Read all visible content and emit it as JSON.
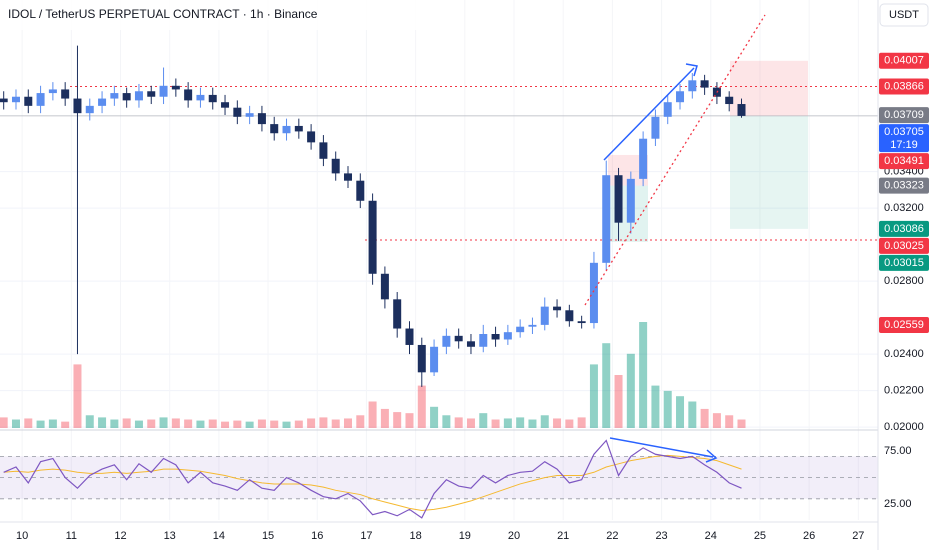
{
  "chart_data": {
    "type": "candlestick",
    "title": "IDOL / TetherUS PERPETUAL CONTRACT · 1h · Binance",
    "currency": "USDT",
    "countdown": "17:19",
    "xlim": [
      9.55,
      27.4
    ],
    "xticks": [
      10,
      11,
      12,
      13,
      14,
      15,
      16,
      17,
      18,
      19,
      20,
      21,
      22,
      23,
      24,
      25,
      26,
      27
    ],
    "ylim": [
      0.01995,
      0.0434
    ],
    "yticks": [
      {
        "value": 0.02,
        "label": "0.02000"
      },
      {
        "value": 0.022,
        "label": "0.02200"
      },
      {
        "value": 0.024,
        "label": "0.02400"
      },
      {
        "value": 0.028,
        "label": "0.02800"
      },
      {
        "value": 0.032,
        "label": "0.03200"
      },
      {
        "value": 0.034,
        "label": "0.03400"
      }
    ],
    "grid": true,
    "up_color": "#5b8def",
    "down_color": "#1c2f5e",
    "x": [
      9.625,
      9.875,
      10.125,
      10.375,
      10.625,
      10.875,
      11.125,
      11.375,
      11.625,
      11.875,
      12.125,
      12.375,
      12.625,
      12.875,
      13.125,
      13.375,
      13.625,
      13.875,
      14.125,
      14.375,
      14.625,
      14.875,
      15.125,
      15.375,
      15.625,
      15.875,
      16.125,
      16.375,
      16.625,
      16.875,
      17.125,
      17.375,
      17.625,
      17.875,
      18.125,
      18.375,
      18.625,
      18.875,
      19.125,
      19.375,
      19.625,
      19.875,
      20.125,
      20.375,
      20.625,
      20.875,
      21.125,
      21.375,
      21.625,
      21.875,
      22.125,
      22.375,
      22.625,
      22.875,
      23.125,
      23.375,
      23.625,
      23.875,
      24.125,
      24.375,
      24.625
    ],
    "open": [
      0.038,
      0.0378,
      0.0381,
      0.0376,
      0.0383,
      0.0385,
      0.038,
      0.0372,
      0.0376,
      0.038,
      0.0383,
      0.0379,
      0.0384,
      0.0381,
      0.0387,
      0.0385,
      0.0379,
      0.0382,
      0.0378,
      0.0375,
      0.037,
      0.0372,
      0.0366,
      0.0361,
      0.0365,
      0.0362,
      0.0356,
      0.0347,
      0.0339,
      0.0335,
      0.0324,
      0.0284,
      0.027,
      0.0254,
      0.0245,
      0.023,
      0.0244,
      0.025,
      0.0247,
      0.0244,
      0.0251,
      0.0248,
      0.0252,
      0.0255,
      0.0256,
      0.0266,
      0.0264,
      0.0258,
      0.0257,
      0.029,
      0.0338,
      0.0312,
      0.0336,
      0.0358,
      0.037,
      0.0378,
      0.0384,
      0.039,
      0.0386,
      0.0381,
      0.0377
    ],
    "high": [
      0.0384,
      0.0385,
      0.0385,
      0.0387,
      0.0389,
      0.0389,
      0.0409,
      0.038,
      0.0384,
      0.0387,
      0.0386,
      0.0388,
      0.0387,
      0.0397,
      0.0391,
      0.0389,
      0.0386,
      0.0386,
      0.0382,
      0.0379,
      0.0376,
      0.0376,
      0.037,
      0.0369,
      0.0369,
      0.0366,
      0.036,
      0.0351,
      0.0343,
      0.0339,
      0.0328,
      0.0288,
      0.0274,
      0.0258,
      0.0249,
      0.0248,
      0.0254,
      0.0254,
      0.0251,
      0.0256,
      0.0255,
      0.0256,
      0.0259,
      0.026,
      0.0271,
      0.027,
      0.0267,
      0.0261,
      0.0296,
      0.0346,
      0.0342,
      0.034,
      0.0362,
      0.0374,
      0.0382,
      0.0388,
      0.0394,
      0.0393,
      0.0389,
      0.0384,
      0.038
    ],
    "low": [
      0.0374,
      0.0374,
      0.0372,
      0.0372,
      0.0379,
      0.0376,
      0.024,
      0.0368,
      0.0372,
      0.0376,
      0.0375,
      0.0375,
      0.0377,
      0.0377,
      0.0381,
      0.0375,
      0.0375,
      0.0374,
      0.0371,
      0.0366,
      0.0366,
      0.0362,
      0.0357,
      0.0357,
      0.0358,
      0.0352,
      0.0343,
      0.0335,
      0.0331,
      0.032,
      0.0278,
      0.0265,
      0.0249,
      0.024,
      0.0222,
      0.0228,
      0.024,
      0.0243,
      0.024,
      0.0241,
      0.0244,
      0.0245,
      0.0249,
      0.0251,
      0.0253,
      0.026,
      0.0255,
      0.0254,
      0.0254,
      0.0286,
      0.0302,
      0.0306,
      0.0332,
      0.0354,
      0.0366,
      0.0374,
      0.038,
      0.0382,
      0.0377,
      0.0373,
      0.03695
    ],
    "close": [
      0.0378,
      0.0381,
      0.0376,
      0.0383,
      0.0385,
      0.038,
      0.0372,
      0.0376,
      0.038,
      0.0383,
      0.0379,
      0.0384,
      0.0381,
      0.0387,
      0.0385,
      0.0379,
      0.0382,
      0.0378,
      0.0375,
      0.037,
      0.0372,
      0.0366,
      0.0361,
      0.0365,
      0.0362,
      0.0356,
      0.0347,
      0.0339,
      0.0335,
      0.0324,
      0.0284,
      0.027,
      0.0254,
      0.0245,
      0.023,
      0.0244,
      0.025,
      0.0247,
      0.0244,
      0.0251,
      0.0248,
      0.0252,
      0.0255,
      0.0256,
      0.0266,
      0.0264,
      0.0258,
      0.0257,
      0.029,
      0.0338,
      0.0312,
      0.0336,
      0.0358,
      0.037,
      0.0378,
      0.0384,
      0.039,
      0.0386,
      0.0381,
      0.0377,
      0.03705
    ],
    "volume": [
      10,
      8,
      9,
      7,
      8,
      6,
      60,
      12,
      10,
      8,
      9,
      7,
      8,
      10,
      9,
      8,
      7,
      8,
      6,
      7,
      6,
      8,
      7,
      6,
      7,
      9,
      10,
      8,
      9,
      12,
      25,
      18,
      15,
      14,
      40,
      20,
      12,
      10,
      9,
      14,
      8,
      9,
      10,
      8,
      12,
      9,
      8,
      10,
      60,
      80,
      50,
      70,
      100,
      40,
      35,
      30,
      25,
      18,
      14,
      12,
      8
    ],
    "rsi": [
      55,
      60,
      45,
      65,
      68,
      50,
      40,
      52,
      58,
      62,
      48,
      63,
      55,
      68,
      62,
      45,
      55,
      45,
      42,
      38,
      48,
      40,
      38,
      50,
      45,
      38,
      32,
      30,
      35,
      28,
      15,
      18,
      14,
      20,
      12,
      35,
      48,
      42,
      40,
      52,
      45,
      52,
      55,
      56,
      65,
      58,
      45,
      48,
      72,
      85,
      52,
      70,
      78,
      72,
      70,
      68,
      70,
      62,
      55,
      45,
      40
    ],
    "rsi_ma": [
      55,
      56,
      55,
      57,
      58,
      57,
      55,
      54,
      54,
      55,
      54,
      55,
      56,
      58,
      58,
      57,
      56,
      54,
      52,
      49,
      47,
      45,
      44,
      44,
      44,
      43,
      41,
      38,
      36,
      34,
      30,
      27,
      24,
      21,
      19,
      20,
      22,
      25,
      28,
      32,
      36,
      40,
      44,
      47,
      50,
      52,
      52,
      52,
      55,
      60,
      63,
      66,
      68,
      70,
      71,
      70,
      69,
      68,
      66,
      62,
      58
    ],
    "rsi_color": "#7e57c2",
    "rsi_ma_color": "#f5b930",
    "rsi_ylim": [
      10,
      93
    ],
    "rsi_yticks": [
      {
        "value": 75,
        "label": "75.00"
      },
      {
        "value": 25,
        "label": "25.00"
      }
    ],
    "rsi_bands": [
      70,
      50,
      30
    ],
    "price_labels": [
      {
        "value": 0.04007,
        "label": "0.04007",
        "color": "#f23645"
      },
      {
        "value": 0.03866,
        "label": "0.03866",
        "color": "#f23645"
      },
      {
        "value": 0.03709,
        "label": "0.03709",
        "color": "#787b86"
      },
      {
        "value": 0.03705,
        "label": "0.03705",
        "color": "#2962ff"
      },
      {
        "value": 0.03491,
        "label": "0.03491",
        "color": "#f23645"
      },
      {
        "value": 0.03323,
        "label": "0.03323",
        "color": "#787b86"
      },
      {
        "value": 0.03086,
        "label": "0.03086",
        "color": "#089981"
      },
      {
        "value": 0.03025,
        "label": "0.03025",
        "color": "#f23645"
      },
      {
        "value": 0.03015,
        "label": "0.03015",
        "color": "#089981"
      },
      {
        "value": 0.02559,
        "label": "0.02559",
        "color": "#f23645"
      }
    ]
  }
}
